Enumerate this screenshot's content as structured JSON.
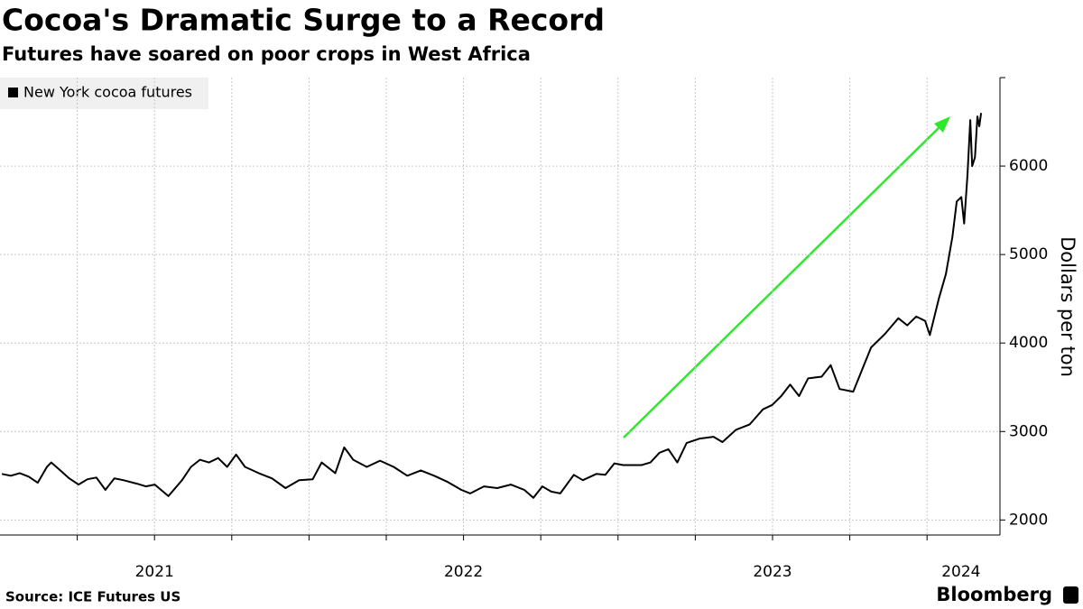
{
  "chart_data": {
    "type": "line",
    "title": "Cocoa's Dramatic Surge to a Record",
    "subtitle": "Futures have soared on poor crops in West Africa",
    "y_label": "Dollars per ton",
    "source": "Source: ICE Futures US",
    "logo": "Bloomberg",
    "x": [
      2021.006,
      2021.035,
      2021.064,
      2021.093,
      2021.122,
      2021.152,
      2021.166,
      2021.195,
      2021.224,
      2021.254,
      2021.283,
      2021.312,
      2021.341,
      2021.37,
      2021.399,
      2021.443,
      2021.472,
      2021.501,
      2021.545,
      2021.589,
      2021.618,
      2021.647,
      2021.676,
      2021.706,
      2021.735,
      2021.764,
      2021.793,
      2021.837,
      2021.88,
      2021.924,
      2021.968,
      2022.012,
      2022.041,
      2022.085,
      2022.114,
      2022.143,
      2022.187,
      2022.23,
      2022.274,
      2022.318,
      2022.362,
      2022.405,
      2022.449,
      2022.493,
      2022.522,
      2022.566,
      2022.609,
      2022.653,
      2022.697,
      2022.726,
      2022.755,
      2022.784,
      2022.813,
      2022.857,
      2022.886,
      2022.93,
      2022.959,
      2022.988,
      2023.017,
      2023.076,
      2023.105,
      2023.134,
      2023.163,
      2023.192,
      2023.222,
      2023.265,
      2023.309,
      2023.338,
      2023.382,
      2023.426,
      2023.469,
      2023.499,
      2023.528,
      2023.557,
      2023.586,
      2023.615,
      2023.659,
      2023.688,
      2023.717,
      2023.761,
      2023.79,
      2023.819,
      2023.863,
      2023.907,
      2023.936,
      2023.965,
      2023.994,
      2024.009,
      2024.038,
      2024.061,
      2024.082,
      2024.096,
      2024.111,
      2024.12,
      2024.131,
      2024.14,
      2024.146,
      2024.155,
      2024.163,
      2024.169,
      2024.175
    ],
    "series": [
      {
        "name": "New York cocoa futures",
        "color": "#000000",
        "values": [
          2520,
          2500,
          2530,
          2490,
          2420,
          2600,
          2650,
          2560,
          2470,
          2400,
          2460,
          2480,
          2340,
          2470,
          2450,
          2410,
          2380,
          2400,
          2270,
          2450,
          2600,
          2680,
          2650,
          2700,
          2600,
          2740,
          2600,
          2530,
          2470,
          2360,
          2450,
          2460,
          2650,
          2530,
          2820,
          2680,
          2600,
          2670,
          2600,
          2500,
          2560,
          2500,
          2430,
          2340,
          2300,
          2380,
          2360,
          2400,
          2340,
          2250,
          2380,
          2320,
          2300,
          2510,
          2450,
          2520,
          2510,
          2640,
          2620,
          2620,
          2650,
          2760,
          2800,
          2650,
          2870,
          2920,
          2940,
          2880,
          3020,
          3080,
          3250,
          3300,
          3400,
          3530,
          3400,
          3600,
          3620,
          3750,
          3480,
          3450,
          3700,
          3950,
          4100,
          4280,
          4200,
          4300,
          4250,
          4090,
          4500,
          4780,
          5200,
          5600,
          5650,
          5350,
          5900,
          6520,
          6000,
          6100,
          6560,
          6450,
          6600
        ]
      }
    ],
    "xlim": [
      2021,
      2024.236
    ],
    "xticks": [
      {
        "value": 2021.5,
        "label": "2021"
      },
      {
        "value": 2022.5,
        "label": "2022"
      },
      {
        "value": 2023.5,
        "label": "2023"
      },
      {
        "value": 2024.11,
        "label": "2024"
      }
    ],
    "xminor": [
      2021.25,
      2021.5,
      2021.75,
      2022,
      2022.25,
      2022.5,
      2022.75,
      2023,
      2023.25,
      2023.5,
      2023.75,
      2024
    ],
    "ylim": [
      1830,
      7000
    ],
    "yticks": [
      2000,
      3000,
      4000,
      5000,
      6000
    ],
    "grid": true
  }
}
